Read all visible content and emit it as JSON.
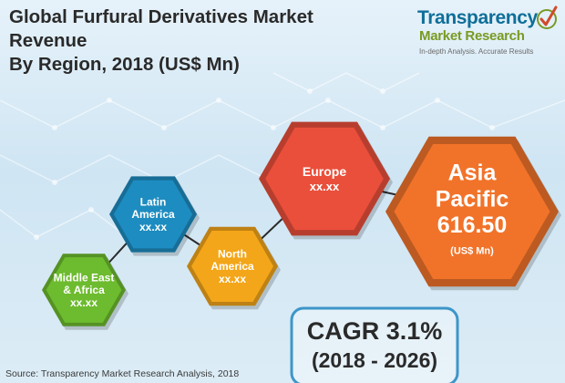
{
  "header": {
    "title_line1": "Global Furfural Derivatives Market Revenue",
    "title_line2": "By Region, 2018 (US$ Mn)"
  },
  "logo": {
    "name": "Transparency",
    "sub": "Market Research",
    "tagline": "In-depth Analysis. Accurate Results",
    "icon": "checkmark-icon"
  },
  "chart_data": {
    "type": "hexagon-infographic",
    "title": "Global Furfural Derivatives Market Revenue By Region, 2018 (US$ Mn)",
    "regions": [
      {
        "name": "Middle East & Africa",
        "lines": [
          "Middle East",
          "& Africa"
        ],
        "value": "xx.xx",
        "color": "#6dbb2e"
      },
      {
        "name": "Latin America",
        "lines": [
          "Latin",
          "America"
        ],
        "value": "xx.xx",
        "color": "#1d8cc0"
      },
      {
        "name": "North America",
        "lines": [
          "North",
          "America"
        ],
        "value": "xx.xx",
        "color": "#f3a619"
      },
      {
        "name": "Europe",
        "lines": [
          "Europe"
        ],
        "value": "xx.xx",
        "color": "#ea4f3b"
      },
      {
        "name": "Asia Pacific",
        "lines": [
          "Asia",
          "Pacific"
        ],
        "value": "616.50",
        "unit": "(US$ Mn)",
        "color": "#f1732a"
      }
    ],
    "cagr": {
      "label": "CAGR 3.1%",
      "period": "(2018 - 2026)"
    }
  },
  "footer": {
    "source": "Source: Transparency Market Research Analysis, 2018"
  }
}
